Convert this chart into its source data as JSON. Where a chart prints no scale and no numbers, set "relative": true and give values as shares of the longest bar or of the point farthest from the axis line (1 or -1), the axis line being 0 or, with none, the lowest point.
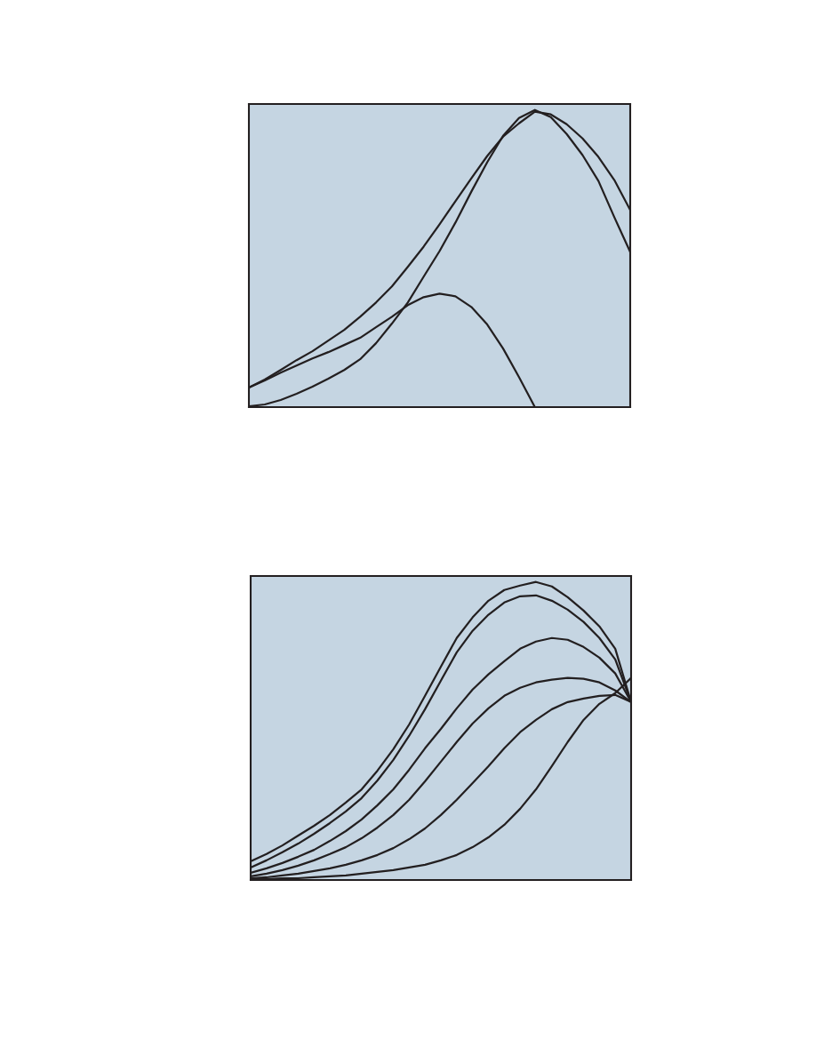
{
  "chart_data": [
    {
      "type": "line",
      "relative": true,
      "line_style": "solid",
      "marker": "none",
      "categories": [
        null,
        null,
        null,
        null,
        null,
        null,
        null,
        null,
        null,
        null,
        null,
        null,
        null,
        null,
        null,
        null,
        null,
        null,
        null,
        null,
        null,
        null,
        null,
        null,
        null
      ],
      "series": [
        {
          "color": "#231f20",
          "values": [
            0.066,
            0.093,
            0.125,
            0.158,
            0.188,
            0.224,
            0.26,
            0.304,
            0.352,
            0.406,
            0.472,
            0.54,
            0.615,
            0.693,
            0.77,
            0.845,
            0.91,
            0.955,
            0.994,
            0.985,
            0.952,
            0.904,
            0.842,
            0.764,
            0.663
          ]
        },
        {
          "color": "#231f20",
          "values": [
            0.003,
            0.009,
            0.024,
            0.045,
            0.069,
            0.096,
            0.125,
            0.161,
            0.215,
            0.281,
            0.352,
            0.439,
            0.525,
            0.621,
            0.725,
            0.824,
            0.913,
            0.973,
            1.0,
            0.976,
            0.919,
            0.848,
            0.761,
            0.639,
            0.522
          ]
        },
        {
          "color": "#231f20",
          "values": [
            0.066,
            0.09,
            0.116,
            0.14,
            0.164,
            0.185,
            0.209,
            0.233,
            0.269,
            0.304,
            0.343,
            0.37,
            0.382,
            0.373,
            0.337,
            0.278,
            0.197,
            0.101,
            0.0,
            null,
            null,
            null,
            null,
            null,
            null
          ]
        }
      ]
    },
    {
      "type": "line",
      "relative": true,
      "line_style": "solid",
      "marker": "none",
      "categories": [
        null,
        null,
        null,
        null,
        null,
        null,
        null,
        null,
        null,
        null,
        null,
        null,
        null,
        null,
        null,
        null,
        null,
        null,
        null,
        null,
        null,
        null,
        null,
        null,
        null
      ],
      "series": [
        {
          "color": "#231f20",
          "values": [
            0.063,
            0.087,
            0.116,
            0.149,
            0.182,
            0.218,
            0.26,
            0.304,
            0.367,
            0.439,
            0.522,
            0.618,
            0.716,
            0.812,
            0.881,
            0.937,
            0.973,
            0.988,
            1.0,
            0.985,
            0.949,
            0.904,
            0.851,
            0.776,
            0.597
          ]
        },
        {
          "color": "#231f20",
          "values": [
            0.042,
            0.066,
            0.093,
            0.122,
            0.155,
            0.191,
            0.23,
            0.275,
            0.334,
            0.403,
            0.484,
            0.573,
            0.669,
            0.764,
            0.836,
            0.89,
            0.931,
            0.952,
            0.955,
            0.937,
            0.907,
            0.866,
            0.812,
            0.74,
            0.597
          ]
        },
        {
          "color": "#231f20",
          "values": [
            0.024,
            0.039,
            0.057,
            0.078,
            0.101,
            0.131,
            0.164,
            0.203,
            0.251,
            0.304,
            0.37,
            0.442,
            0.507,
            0.576,
            0.639,
            0.69,
            0.734,
            0.776,
            0.8,
            0.812,
            0.806,
            0.782,
            0.746,
            0.693,
            0.597
          ]
        },
        {
          "color": "#231f20",
          "values": [
            0.012,
            0.021,
            0.033,
            0.048,
            0.066,
            0.087,
            0.11,
            0.14,
            0.176,
            0.218,
            0.269,
            0.331,
            0.397,
            0.463,
            0.525,
            0.576,
            0.618,
            0.645,
            0.663,
            0.672,
            0.678,
            0.675,
            0.663,
            0.636,
            0.597
          ]
        },
        {
          "color": "#231f20",
          "values": [
            0.006,
            0.009,
            0.015,
            0.021,
            0.03,
            0.039,
            0.051,
            0.066,
            0.084,
            0.107,
            0.137,
            0.173,
            0.218,
            0.269,
            0.325,
            0.382,
            0.442,
            0.496,
            0.537,
            0.573,
            0.597,
            0.609,
            0.618,
            0.621,
            0.597
          ]
        },
        {
          "color": "#231f20",
          "values": [
            0.003,
            0.003,
            0.006,
            0.006,
            0.009,
            0.012,
            0.015,
            0.021,
            0.027,
            0.033,
            0.042,
            0.051,
            0.066,
            0.084,
            0.11,
            0.143,
            0.185,
            0.239,
            0.304,
            0.382,
            0.463,
            0.537,
            0.591,
            0.627,
            0.678
          ]
        }
      ]
    }
  ]
}
